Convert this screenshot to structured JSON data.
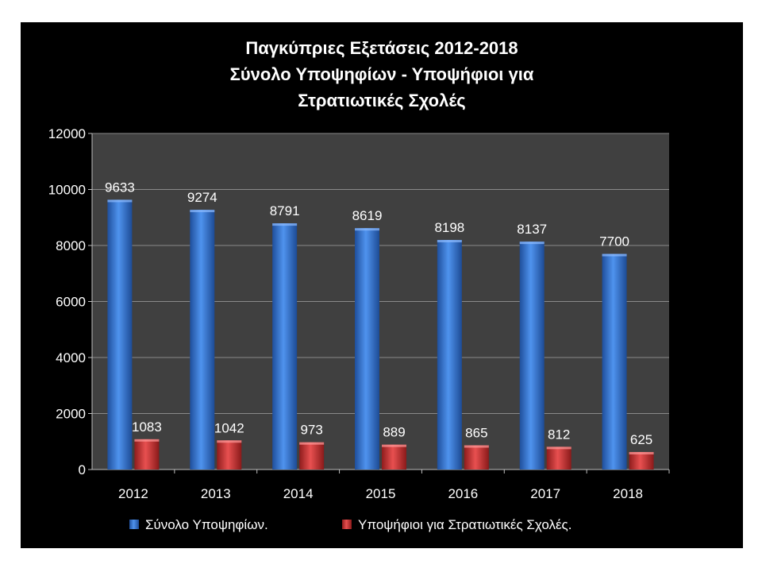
{
  "chart_data": {
    "type": "bar",
    "title_lines": [
      "Παγκύπριες Εξετάσεις 2012-2018",
      "Σύνολο Υποψηφίων - Υποψήφιοι για",
      "Στρατιωτικές Σχολές"
    ],
    "categories": [
      "2012",
      "2013",
      "2014",
      "2015",
      "2016",
      "2017",
      "2018"
    ],
    "series": [
      {
        "name": "Σύνολο Υποψηφίων.",
        "values": [
          9633,
          9274,
          8791,
          8619,
          8198,
          8137,
          7700
        ],
        "labels": [
          "9633",
          "9274",
          "8791",
          "8619",
          "8198",
          "8137",
          "7700"
        ],
        "color": "#3d7fdc"
      },
      {
        "name": "Υποψήφιοι για Στρατιωτικές Σχολές.",
        "values": [
          1083,
          1042,
          973,
          889,
          865,
          812,
          625
        ],
        "labels": [
          "1083",
          "1042",
          "973",
          "889",
          "865",
          "812",
          "625"
        ],
        "color": "#d63a3a"
      }
    ],
    "ylim": [
      0,
      12000
    ],
    "yticks": [
      0,
      2000,
      4000,
      6000,
      8000,
      10000,
      12000
    ],
    "ytick_labels": [
      "0",
      "2000",
      "4000",
      "6000",
      "8000",
      "10000",
      "12000"
    ],
    "grid": true,
    "legend_position": "bottom",
    "plot_background": "#404040",
    "background": "#000000"
  }
}
